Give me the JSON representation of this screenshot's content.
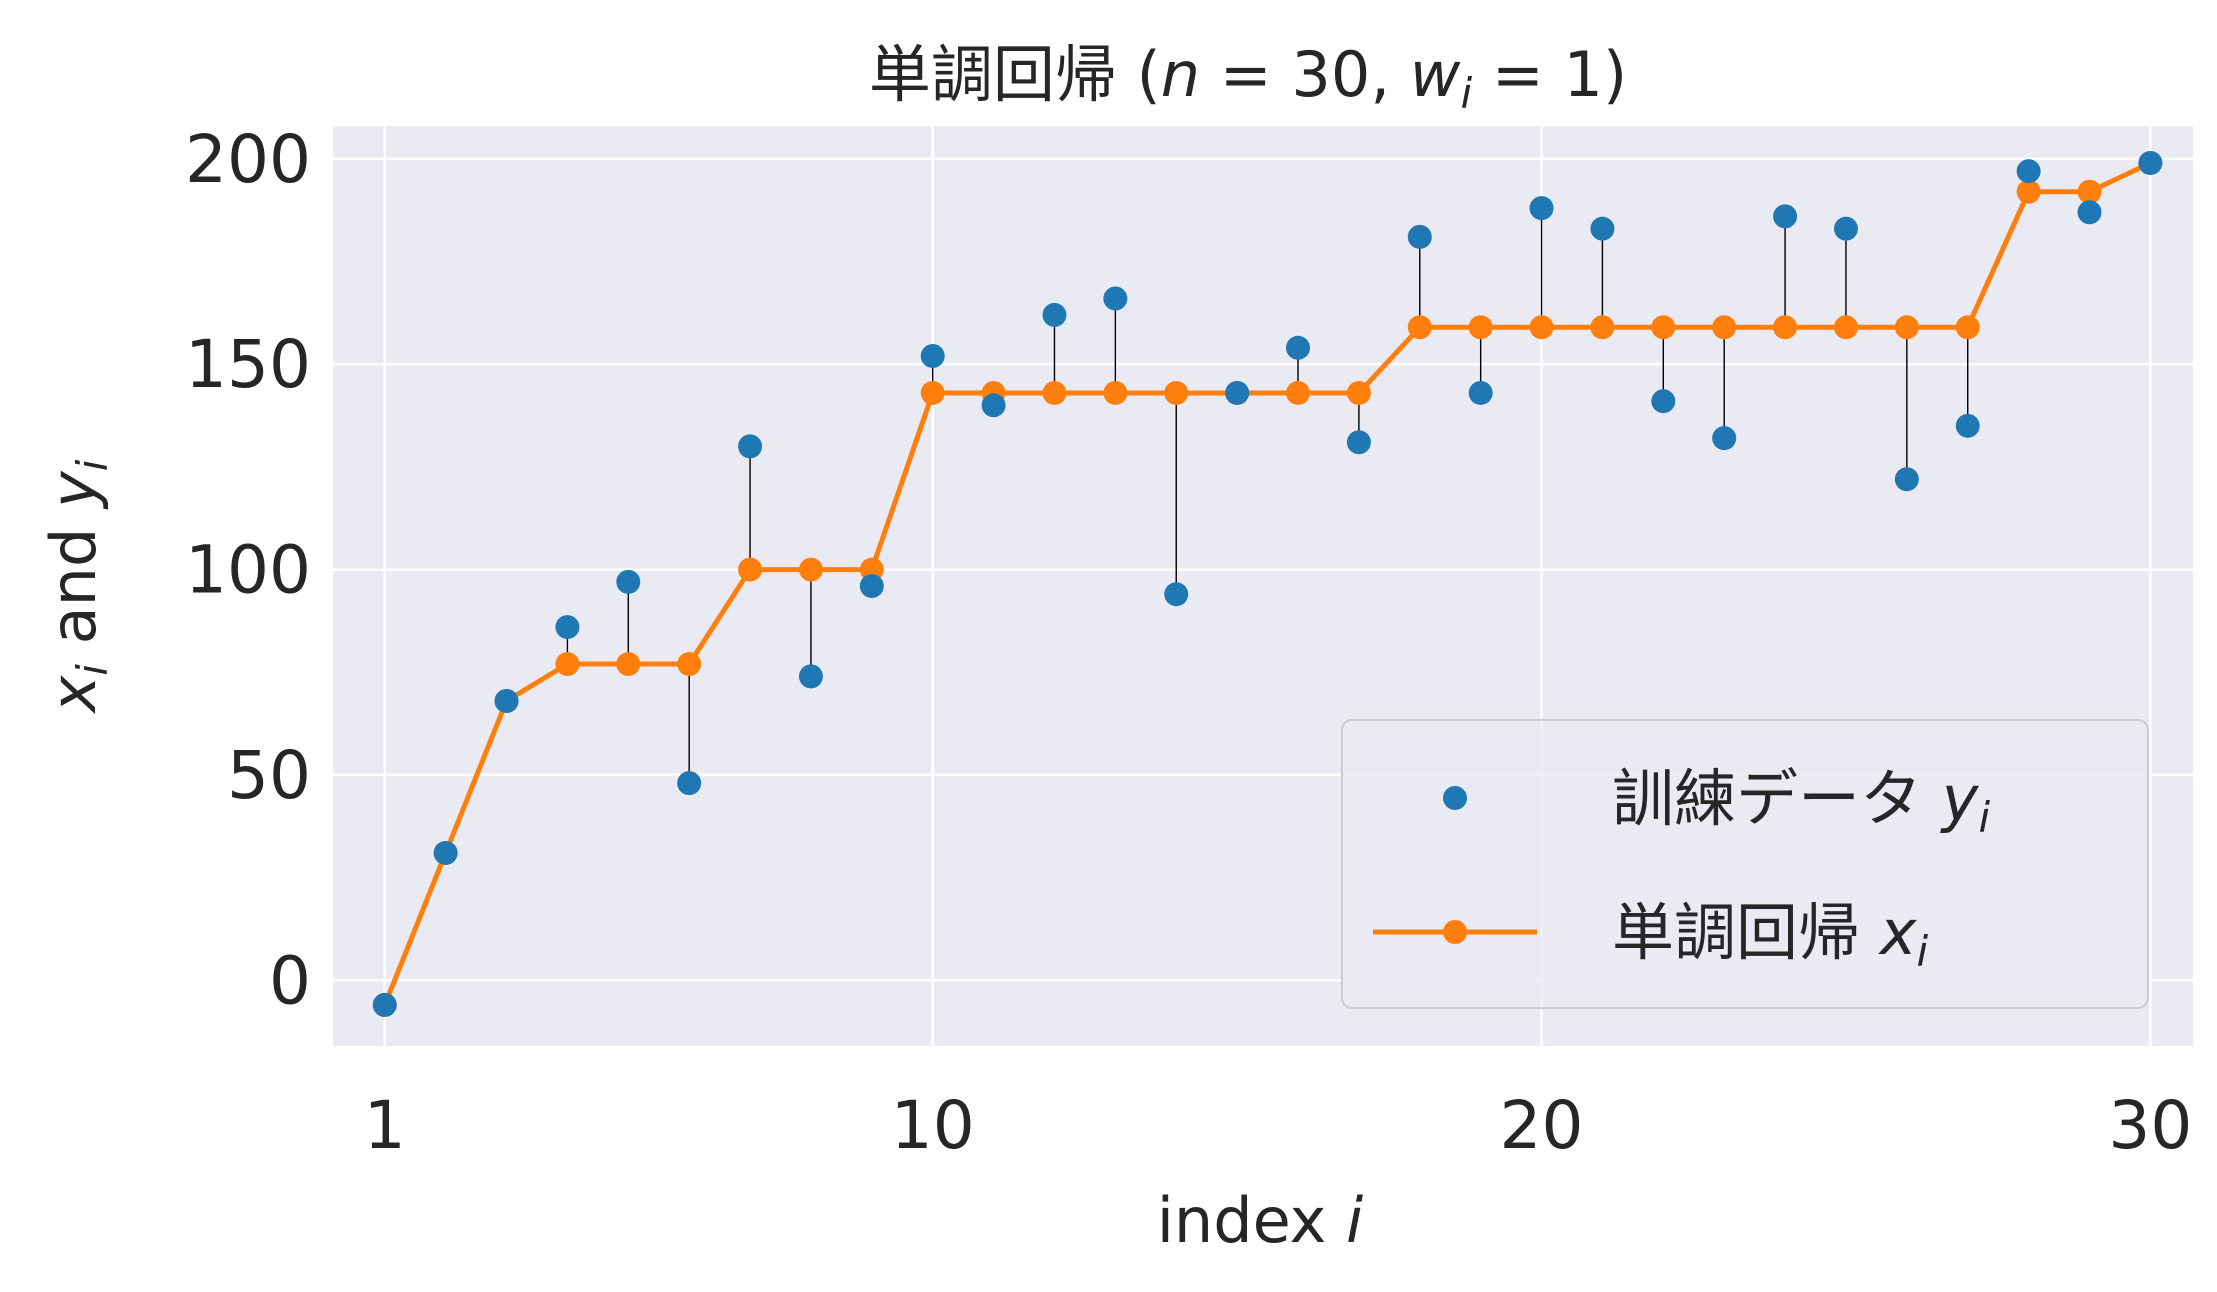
{
  "chart_data": {
    "type": "line",
    "title": {
      "prefix": "単調回帰 (",
      "n_symbol": "n",
      "n_eq": " = 30, ",
      "w_symbol": "w",
      "w_sub": "i",
      "w_eq": " = 1)"
    },
    "xlabel": {
      "text": "index ",
      "symbol": "i"
    },
    "ylabel": {
      "x_symbol": "x",
      "x_sub": "i",
      "and_text": "  and  ",
      "y_symbol": "y",
      "y_sub": "i"
    },
    "xlim": [
      0.15,
      30.7
    ],
    "ylim": [
      -16,
      208
    ],
    "xticks": [
      {
        "value": 1,
        "label": "1"
      },
      {
        "value": 10,
        "label": "10"
      },
      {
        "value": 20,
        "label": "20"
      },
      {
        "value": 30,
        "label": "30"
      }
    ],
    "yticks": [
      {
        "value": 0,
        "label": "0"
      },
      {
        "value": 50,
        "label": "50"
      },
      {
        "value": 100,
        "label": "100"
      },
      {
        "value": 150,
        "label": "150"
      },
      {
        "value": 200,
        "label": "200"
      }
    ],
    "grid": true,
    "legend_position": "lower-right",
    "x": [
      1,
      2,
      3,
      4,
      5,
      6,
      7,
      8,
      9,
      10,
      11,
      12,
      13,
      14,
      15,
      16,
      17,
      18,
      19,
      20,
      21,
      22,
      23,
      24,
      25,
      26,
      27,
      28,
      29,
      30
    ],
    "series": [
      {
        "name": "訓練データ",
        "symbol": "y",
        "sub": "i",
        "style": "scatter",
        "color": "#1f77b4",
        "values": [
          -6,
          31,
          68,
          86,
          97,
          48,
          130,
          74,
          96,
          152,
          140,
          162,
          166,
          94,
          143,
          154,
          131,
          181,
          143,
          188,
          183,
          141,
          132,
          186,
          183,
          122,
          135,
          197,
          187,
          199
        ]
      },
      {
        "name": "単調回帰",
        "symbol": "x",
        "sub": "i",
        "style": "line-markers",
        "color": "#ff7f0e",
        "values": [
          -6,
          31,
          68,
          77,
          77,
          77,
          100,
          100,
          100,
          143,
          143,
          143,
          143,
          143,
          143,
          143,
          143,
          159,
          159,
          159,
          159,
          159,
          159,
          159,
          159,
          159,
          159,
          192,
          192,
          199
        ]
      }
    ],
    "residual_line_color": "#000000",
    "plot_background": "#eaeaf2",
    "grid_color": "#ffffff"
  }
}
